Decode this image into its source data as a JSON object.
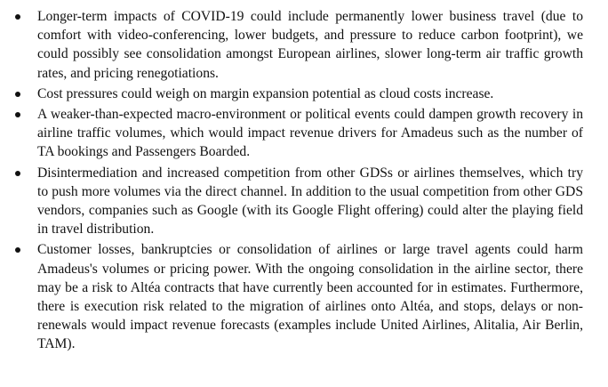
{
  "bullets": [
    {
      "text": "Longer-term impacts of COVID-19 could include permanently lower business travel (due to comfort with video-conferencing, lower budgets, and pressure to reduce carbon footprint), we could possibly see consolidation amongst European airlines, slower long-term air traffic growth rates, and pricing renegotiations."
    },
    {
      "text": "Cost pressures could weigh on margin expansion potential as cloud costs increase."
    },
    {
      "text": "A weaker-than-expected macro-environment or political events could dampen growth recovery in airline traffic volumes, which would impact revenue drivers for Amadeus such as the number of TA bookings and Passengers Boarded."
    },
    {
      "text": "Disintermediation and increased competition from other GDSs or airlines themselves, which try to push more volumes via the direct channel. In addition to the usual competition from other GDS vendors, companies such as Google (with its Google Flight offering) could alter the playing field in travel distribution."
    },
    {
      "text": "Customer losses, bankruptcies or consolidation of airlines or large travel agents could harm Amadeus's volumes or pricing power. With the ongoing consolidation in the airline sector, there may be a risk to Altéa contracts that have currently been accounted for in estimates. Furthermore, there is execution risk related to the migration of airlines onto Altéa, and stops, delays or non-renewals would impact revenue forecasts (examples include United Airlines, Alitalia, Air Berlin, TAM)."
    }
  ]
}
